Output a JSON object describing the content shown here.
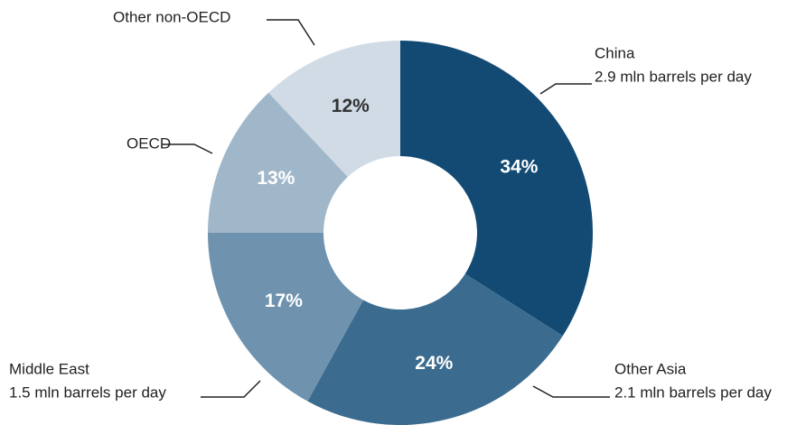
{
  "chart_data": {
    "type": "donut",
    "categories": [
      "China",
      "Other Asia",
      "Middle East",
      "OECD",
      "Other non-OECD"
    ],
    "details": [
      "2.9 mln barrels per day",
      "2.1 mln barrels per day",
      "1.5 mln barrels per day",
      null,
      null
    ],
    "values": [
      34,
      24,
      17,
      13,
      12
    ],
    "value_labels": [
      "34%",
      "24%",
      "17%",
      "13%",
      "12%"
    ],
    "colors": [
      "#124a73",
      "#3b6c8f",
      "#6f93ae",
      "#a0b7ca",
      "#d0dbe6"
    ]
  }
}
